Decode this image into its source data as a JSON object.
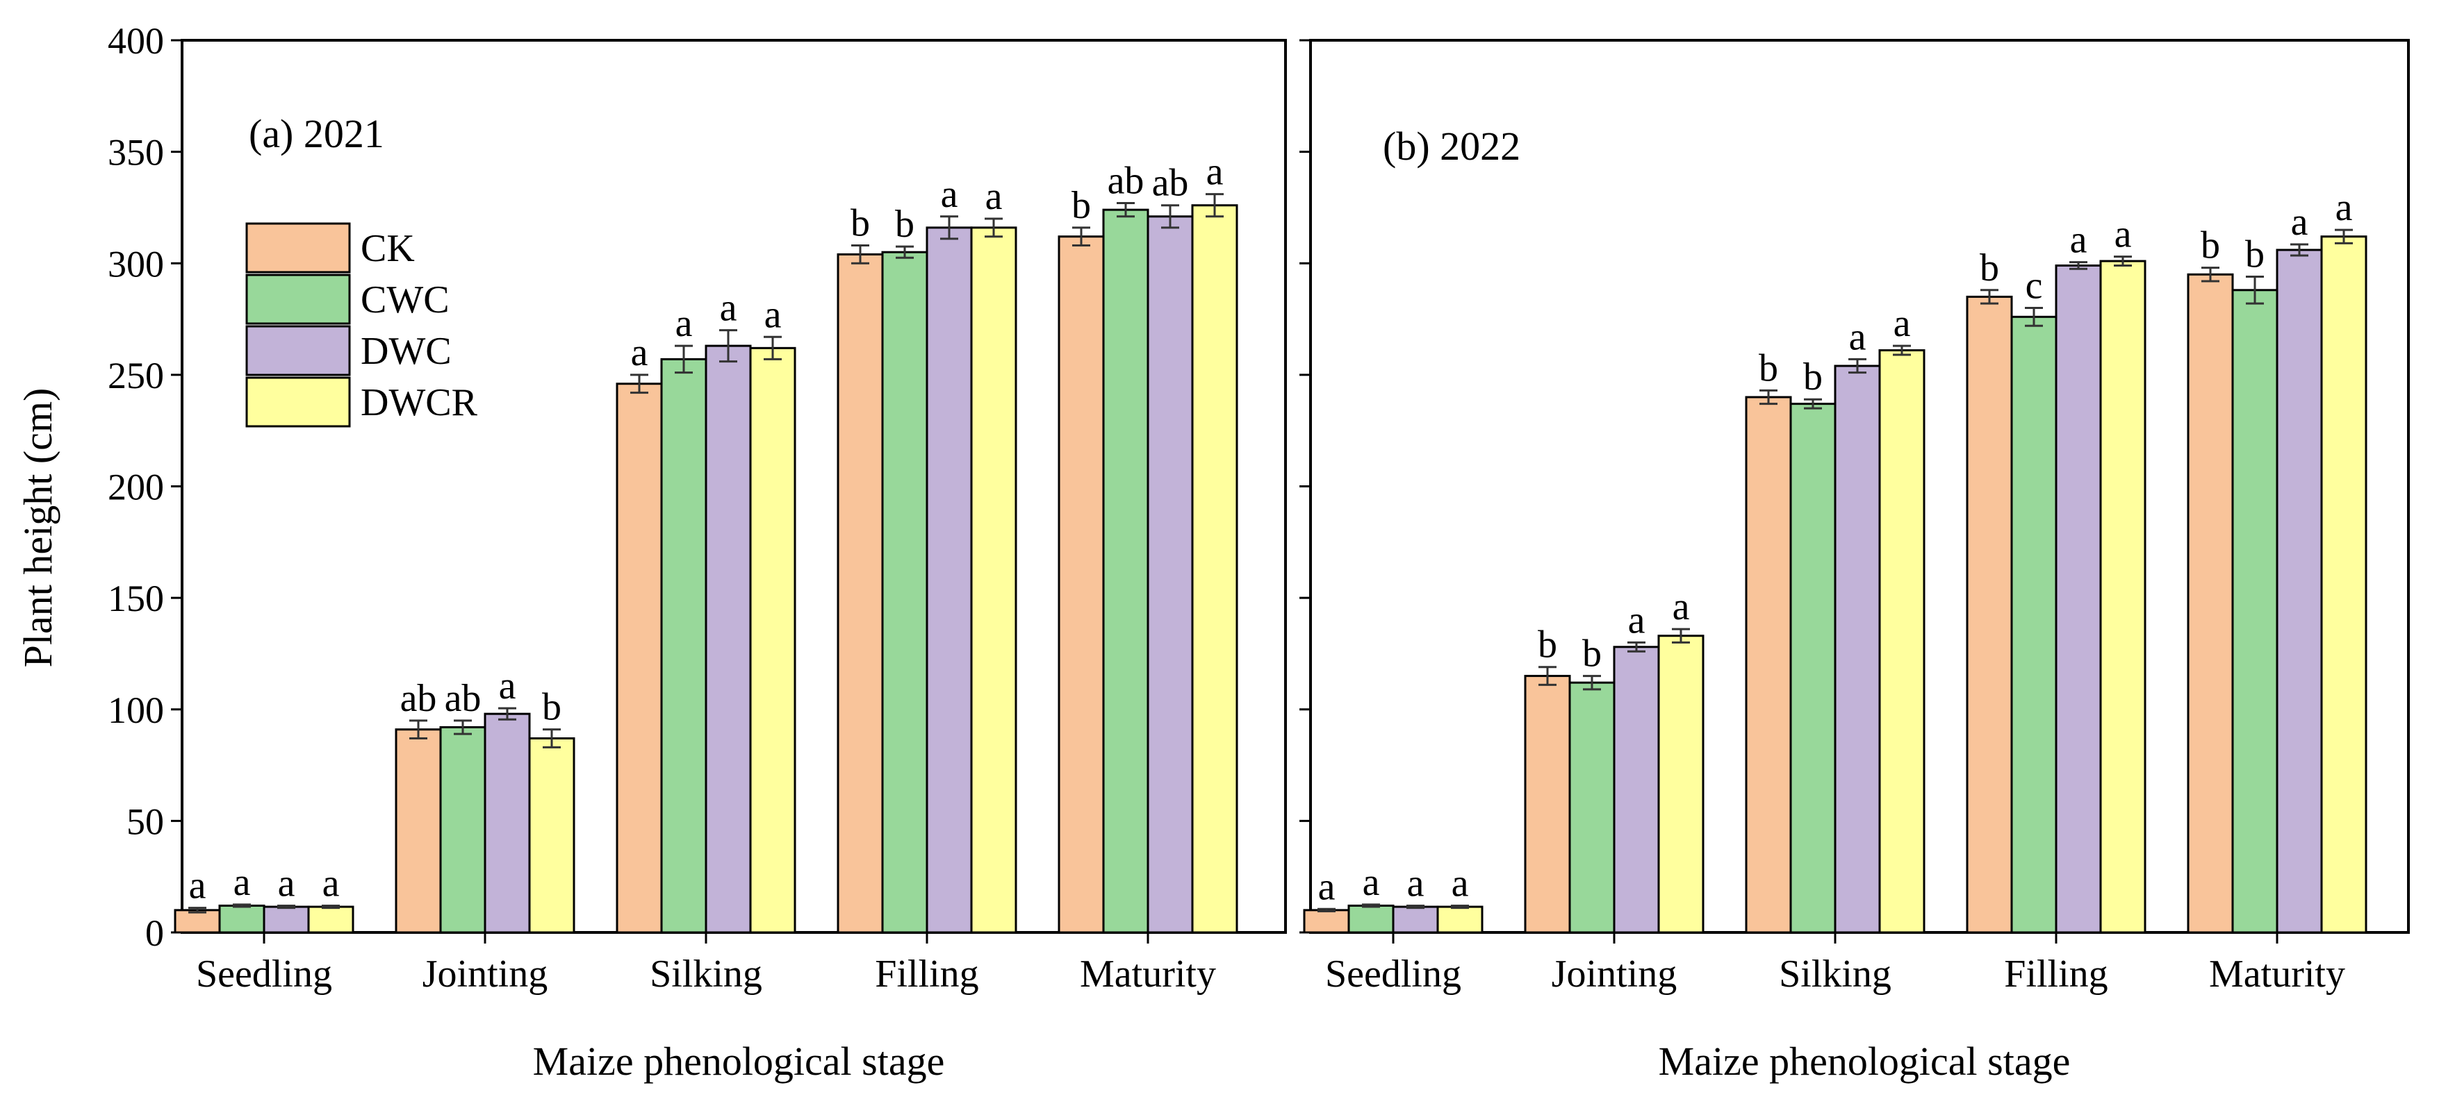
{
  "figure": {
    "ylabel": "Plant height (cm)",
    "xlabel": "Maize phenological stage",
    "colors": {
      "CK": "#f9c49a",
      "CWC": "#98d89a",
      "DWC": "#c2b3d8",
      "DWCR": "#ffff9e",
      "axis": "#000000",
      "errorbar": "#333333"
    }
  },
  "chart_data": [
    {
      "type": "bar",
      "panel_label": "(a)  2021",
      "xlabel": "Maize phenological stage",
      "ylabel": "Plant height (cm)",
      "ylim": [
        0,
        400
      ],
      "yticks": [
        0,
        50,
        100,
        150,
        200,
        250,
        300,
        350,
        400
      ],
      "categories": [
        "Seedling",
        "Jointing",
        "Silking",
        "Filling",
        "Maturity"
      ],
      "legend": [
        "CK",
        "CWC",
        "DWC",
        "DWCR"
      ],
      "legend_position": "top-left",
      "series": [
        {
          "name": "CK",
          "values": [
            10,
            91,
            246,
            304,
            312
          ],
          "errors": [
            1,
            4,
            4,
            4,
            4
          ],
          "letters": [
            "a",
            "ab",
            "a",
            "b",
            "b"
          ]
        },
        {
          "name": "CWC",
          "values": [
            12,
            92,
            257,
            305,
            324
          ],
          "errors": [
            0.5,
            3,
            6,
            2.5,
            3
          ],
          "letters": [
            "a",
            "ab",
            "a",
            "b",
            "ab"
          ]
        },
        {
          "name": "DWC",
          "values": [
            11.5,
            98,
            263,
            316,
            321
          ],
          "errors": [
            0.5,
            2.5,
            7,
            5,
            5
          ],
          "letters": [
            "a",
            "a",
            "a",
            "a",
            "ab"
          ]
        },
        {
          "name": "DWCR",
          "values": [
            11.5,
            87,
            262,
            316,
            326
          ],
          "errors": [
            0.5,
            4,
            5,
            4,
            5
          ],
          "letters": [
            "a",
            "b",
            "a",
            "a",
            "a"
          ]
        }
      ]
    },
    {
      "type": "bar",
      "panel_label": "(b)  2022",
      "xlabel": "Maize phenological stage",
      "ylabel": "Plant height (cm)",
      "ylim": [
        0,
        400
      ],
      "yticks": [
        0,
        50,
        100,
        150,
        200,
        250,
        300,
        350,
        400
      ],
      "categories": [
        "Seedling",
        "Jointing",
        "Silking",
        "Filling",
        "Maturity"
      ],
      "legend": [
        "CK",
        "CWC",
        "DWC",
        "DWCR"
      ],
      "series": [
        {
          "name": "CK",
          "values": [
            10,
            115,
            240,
            285,
            295
          ],
          "errors": [
            0.5,
            4,
            3,
            3,
            3
          ],
          "letters": [
            "a",
            "b",
            "b",
            "b",
            "b"
          ]
        },
        {
          "name": "CWC",
          "values": [
            12,
            112,
            237,
            276,
            288
          ],
          "errors": [
            0.5,
            3,
            2,
            4,
            6
          ],
          "letters": [
            "a",
            "b",
            "b",
            "c",
            "b"
          ]
        },
        {
          "name": "DWC",
          "values": [
            11.5,
            128,
            254,
            299,
            306
          ],
          "errors": [
            0.5,
            2,
            3,
            1.5,
            2.5
          ],
          "letters": [
            "a",
            "a",
            "a",
            "a",
            "a"
          ]
        },
        {
          "name": "DWCR",
          "values": [
            11.5,
            133,
            261,
            301,
            312
          ],
          "errors": [
            0.5,
            3,
            2,
            2,
            3
          ],
          "letters": [
            "a",
            "a",
            "a",
            "a",
            "a"
          ]
        }
      ]
    }
  ]
}
